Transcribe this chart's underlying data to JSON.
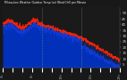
{
  "title": "Milwaukee Weather Outdoor Temp (vs) Wind Chill per Minute (Last 24 Hours)",
  "bg_color": "#181818",
  "plot_bg_color": "#1a1a1a",
  "grid_color": "#444444",
  "temp_color": "#ff2200",
  "chill_color": "#1144ff",
  "chill_fill_color": "#0033cc",
  "yticks": [
    50,
    45,
    40,
    35,
    30,
    25,
    20,
    15,
    10,
    5
  ],
  "ylim": [
    2,
    55
  ],
  "n_points": 1440,
  "vline_positions": [
    480,
    960
  ]
}
